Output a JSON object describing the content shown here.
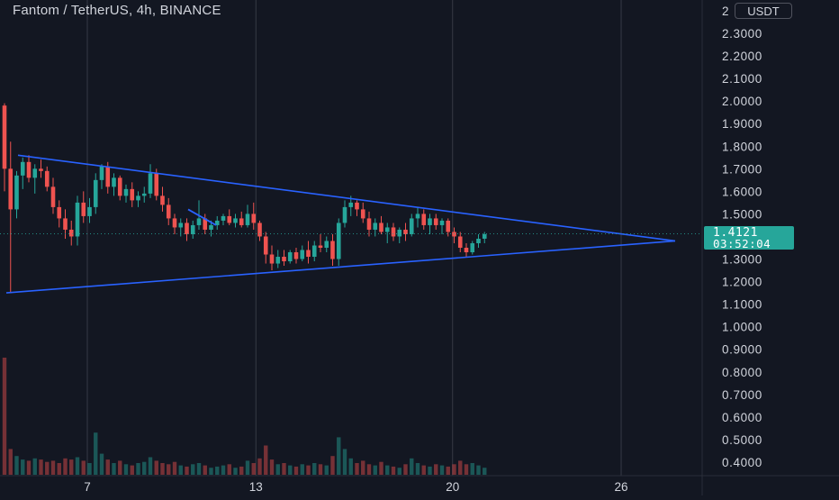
{
  "header": {
    "title": "Fantom / TetherUS, 4h, BINANCE",
    "currency": "USDT"
  },
  "current_price": {
    "value": "1.4121",
    "countdown": "03:52:04",
    "color": "#26a69a"
  },
  "colors": {
    "background": "#131722",
    "up": "#26a69a",
    "down": "#ef5350",
    "trendline": "#2962ff",
    "grid": "#363a45",
    "text": "#d1d4dc"
  },
  "chart_data": {
    "type": "candlestick",
    "symbol": "FTM/USDT",
    "timeframe": "4h",
    "exchange": "BINANCE",
    "ylim": [
      0.36,
      2.42
    ],
    "y_ticks": [
      "2.3000",
      "2.2000",
      "2.1000",
      "2.0000",
      "1.9000",
      "1.8000",
      "1.7000",
      "1.6000",
      "1.5000",
      "1.4000",
      "1.3000",
      "1.2000",
      "1.1000",
      "1.0000",
      "0.9000",
      "0.8000",
      "0.7000",
      "0.6000",
      "0.5000",
      "0.4000"
    ],
    "y_top_partial_label": "2",
    "x_ticks": [
      {
        "label": "7",
        "day": 7
      },
      {
        "label": "13",
        "day": 13
      },
      {
        "label": "20",
        "day": 20
      },
      {
        "label": "26",
        "day": 26
      }
    ],
    "price_ohlc": [
      [
        1.98,
        1.99,
        1.6,
        1.7
      ],
      [
        1.7,
        1.82,
        1.15,
        1.52
      ],
      [
        1.52,
        1.69,
        1.48,
        1.67
      ],
      [
        1.67,
        1.75,
        1.61,
        1.73
      ],
      [
        1.73,
        1.76,
        1.64,
        1.66
      ],
      [
        1.66,
        1.72,
        1.59,
        1.7
      ],
      [
        1.7,
        1.74,
        1.66,
        1.69
      ],
      [
        1.69,
        1.71,
        1.6,
        1.62
      ],
      [
        1.62,
        1.66,
        1.5,
        1.53
      ],
      [
        1.53,
        1.56,
        1.44,
        1.48
      ],
      [
        1.48,
        1.52,
        1.39,
        1.43
      ],
      [
        1.43,
        1.47,
        1.36,
        1.4
      ],
      [
        1.4,
        1.58,
        1.36,
        1.55
      ],
      [
        1.55,
        1.6,
        1.46,
        1.49
      ],
      [
        1.49,
        1.57,
        1.46,
        1.53
      ],
      [
        1.53,
        1.68,
        1.5,
        1.65
      ],
      [
        1.65,
        1.72,
        1.61,
        1.71
      ],
      [
        1.71,
        1.73,
        1.59,
        1.62
      ],
      [
        1.62,
        1.68,
        1.58,
        1.66
      ],
      [
        1.66,
        1.67,
        1.56,
        1.58
      ],
      [
        1.58,
        1.63,
        1.55,
        1.61
      ],
      [
        1.61,
        1.64,
        1.53,
        1.56
      ],
      [
        1.56,
        1.6,
        1.53,
        1.58
      ],
      [
        1.58,
        1.62,
        1.55,
        1.59
      ],
      [
        1.59,
        1.72,
        1.57,
        1.68
      ],
      [
        1.68,
        1.7,
        1.56,
        1.58
      ],
      [
        1.58,
        1.62,
        1.51,
        1.54
      ],
      [
        1.54,
        1.57,
        1.45,
        1.48
      ],
      [
        1.48,
        1.5,
        1.41,
        1.44
      ],
      [
        1.44,
        1.48,
        1.4,
        1.46
      ],
      [
        1.46,
        1.48,
        1.38,
        1.41
      ],
      [
        1.41,
        1.47,
        1.39,
        1.45
      ],
      [
        1.45,
        1.56,
        1.43,
        1.48
      ],
      [
        1.48,
        1.5,
        1.41,
        1.43
      ],
      [
        1.43,
        1.47,
        1.4,
        1.45
      ],
      [
        1.45,
        1.49,
        1.43,
        1.47
      ],
      [
        1.47,
        1.5,
        1.45,
        1.49
      ],
      [
        1.49,
        1.52,
        1.45,
        1.46
      ],
      [
        1.46,
        1.5,
        1.44,
        1.48
      ],
      [
        1.48,
        1.51,
        1.44,
        1.45
      ],
      [
        1.45,
        1.54,
        1.44,
        1.5
      ],
      [
        1.5,
        1.55,
        1.43,
        1.46
      ],
      [
        1.46,
        1.47,
        1.38,
        1.4
      ],
      [
        1.4,
        1.42,
        1.28,
        1.32
      ],
      [
        1.32,
        1.36,
        1.25,
        1.28
      ],
      [
        1.28,
        1.34,
        1.26,
        1.31
      ],
      [
        1.31,
        1.34,
        1.27,
        1.29
      ],
      [
        1.29,
        1.34,
        1.28,
        1.33
      ],
      [
        1.33,
        1.35,
        1.28,
        1.3
      ],
      [
        1.3,
        1.36,
        1.29,
        1.34
      ],
      [
        1.34,
        1.38,
        1.28,
        1.31
      ],
      [
        1.31,
        1.38,
        1.29,
        1.36
      ],
      [
        1.36,
        1.41,
        1.33,
        1.35
      ],
      [
        1.35,
        1.4,
        1.33,
        1.38
      ],
      [
        1.38,
        1.41,
        1.27,
        1.3
      ],
      [
        1.3,
        1.48,
        1.27,
        1.46
      ],
      [
        1.46,
        1.56,
        1.44,
        1.53
      ],
      [
        1.53,
        1.58,
        1.49,
        1.55
      ],
      [
        1.55,
        1.56,
        1.49,
        1.52
      ],
      [
        1.52,
        1.55,
        1.46,
        1.48
      ],
      [
        1.48,
        1.51,
        1.4,
        1.43
      ],
      [
        1.43,
        1.48,
        1.4,
        1.46
      ],
      [
        1.46,
        1.49,
        1.41,
        1.42
      ],
      [
        1.42,
        1.46,
        1.37,
        1.44
      ],
      [
        1.44,
        1.46,
        1.38,
        1.4
      ],
      [
        1.4,
        1.44,
        1.37,
        1.43
      ],
      [
        1.43,
        1.46,
        1.38,
        1.41
      ],
      [
        1.41,
        1.5,
        1.4,
        1.48
      ],
      [
        1.48,
        1.53,
        1.44,
        1.5
      ],
      [
        1.5,
        1.52,
        1.43,
        1.45
      ],
      [
        1.45,
        1.5,
        1.41,
        1.48
      ],
      [
        1.48,
        1.5,
        1.43,
        1.45
      ],
      [
        1.45,
        1.48,
        1.41,
        1.47
      ],
      [
        1.47,
        1.48,
        1.4,
        1.42
      ],
      [
        1.42,
        1.44,
        1.37,
        1.4
      ],
      [
        1.4,
        1.42,
        1.33,
        1.35
      ],
      [
        1.35,
        1.37,
        1.31,
        1.33
      ],
      [
        1.33,
        1.38,
        1.32,
        1.37
      ],
      [
        1.37,
        1.41,
        1.35,
        1.39
      ],
      [
        1.39,
        1.42,
        1.37,
        1.41
      ]
    ],
    "volume_max_value": 0.855,
    "volume_fraction": [
      1.0,
      0.22,
      0.16,
      0.13,
      0.12,
      0.14,
      0.13,
      0.11,
      0.12,
      0.1,
      0.14,
      0.13,
      0.15,
      0.12,
      0.1,
      0.36,
      0.18,
      0.13,
      0.1,
      0.12,
      0.09,
      0.08,
      0.1,
      0.11,
      0.15,
      0.12,
      0.1,
      0.09,
      0.11,
      0.08,
      0.07,
      0.09,
      0.1,
      0.08,
      0.06,
      0.07,
      0.08,
      0.09,
      0.06,
      0.07,
      0.12,
      0.1,
      0.14,
      0.25,
      0.13,
      0.09,
      0.1,
      0.08,
      0.07,
      0.09,
      0.08,
      0.1,
      0.09,
      0.08,
      0.16,
      0.32,
      0.22,
      0.14,
      0.1,
      0.12,
      0.09,
      0.08,
      0.11,
      0.08,
      0.07,
      0.06,
      0.09,
      0.14,
      0.1,
      0.08,
      0.07,
      0.09,
      0.08,
      0.07,
      0.09,
      0.12,
      0.09,
      0.1,
      0.08,
      0.06
    ],
    "trendlines": [
      {
        "name": "upper",
        "from": [
          1.76
        ],
        "to": [
          1.4
        ]
      },
      {
        "name": "lower",
        "from": [
          1.15
        ],
        "to": [
          1.4
        ]
      }
    ],
    "grid": true,
    "legend": "none"
  }
}
